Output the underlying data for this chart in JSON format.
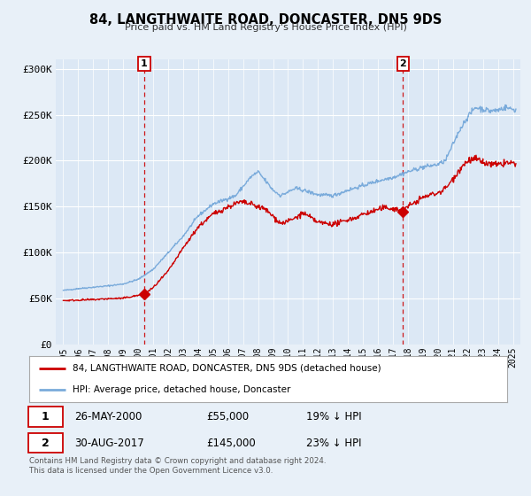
{
  "title": "84, LANGTHWAITE ROAD, DONCASTER, DN5 9DS",
  "subtitle": "Price paid vs. HM Land Registry's House Price Index (HPI)",
  "bg_color": "#e8f0f8",
  "plot_bg_color": "#dce8f5",
  "red_line_label": "84, LANGTHWAITE ROAD, DONCASTER, DN5 9DS (detached house)",
  "blue_line_label": "HPI: Average price, detached house, Doncaster",
  "marker1": {
    "date_num": 2000.4,
    "value": 55000,
    "label": "1",
    "date_str": "26-MAY-2000",
    "price": "£55,000",
    "hpi": "19% ↓ HPI"
  },
  "marker2": {
    "date_num": 2017.67,
    "value": 145000,
    "label": "2",
    "date_str": "30-AUG-2017",
    "price": "£145,000",
    "hpi": "23% ↓ HPI"
  },
  "vline1_x": 2000.4,
  "vline2_x": 2017.67,
  "ylim": [
    0,
    310000
  ],
  "xlim": [
    1994.5,
    2025.5
  ],
  "yticks": [
    0,
    50000,
    100000,
    150000,
    200000,
    250000,
    300000
  ],
  "ytick_labels": [
    "£0",
    "£50K",
    "£100K",
    "£150K",
    "£200K",
    "£250K",
    "£300K"
  ],
  "xticks": [
    1995,
    1996,
    1997,
    1998,
    1999,
    2000,
    2001,
    2002,
    2003,
    2004,
    2005,
    2006,
    2007,
    2008,
    2009,
    2010,
    2011,
    2012,
    2013,
    2014,
    2015,
    2016,
    2017,
    2018,
    2019,
    2020,
    2021,
    2022,
    2023,
    2024,
    2025
  ],
  "footer": "Contains HM Land Registry data © Crown copyright and database right 2024.\nThis data is licensed under the Open Government Licence v3.0.",
  "red_color": "#cc0000",
  "blue_color": "#7aabdb",
  "grid_color": "#ffffff",
  "legend_border_color": "#aaaaaa",
  "marker_box_color": "#cc0000"
}
